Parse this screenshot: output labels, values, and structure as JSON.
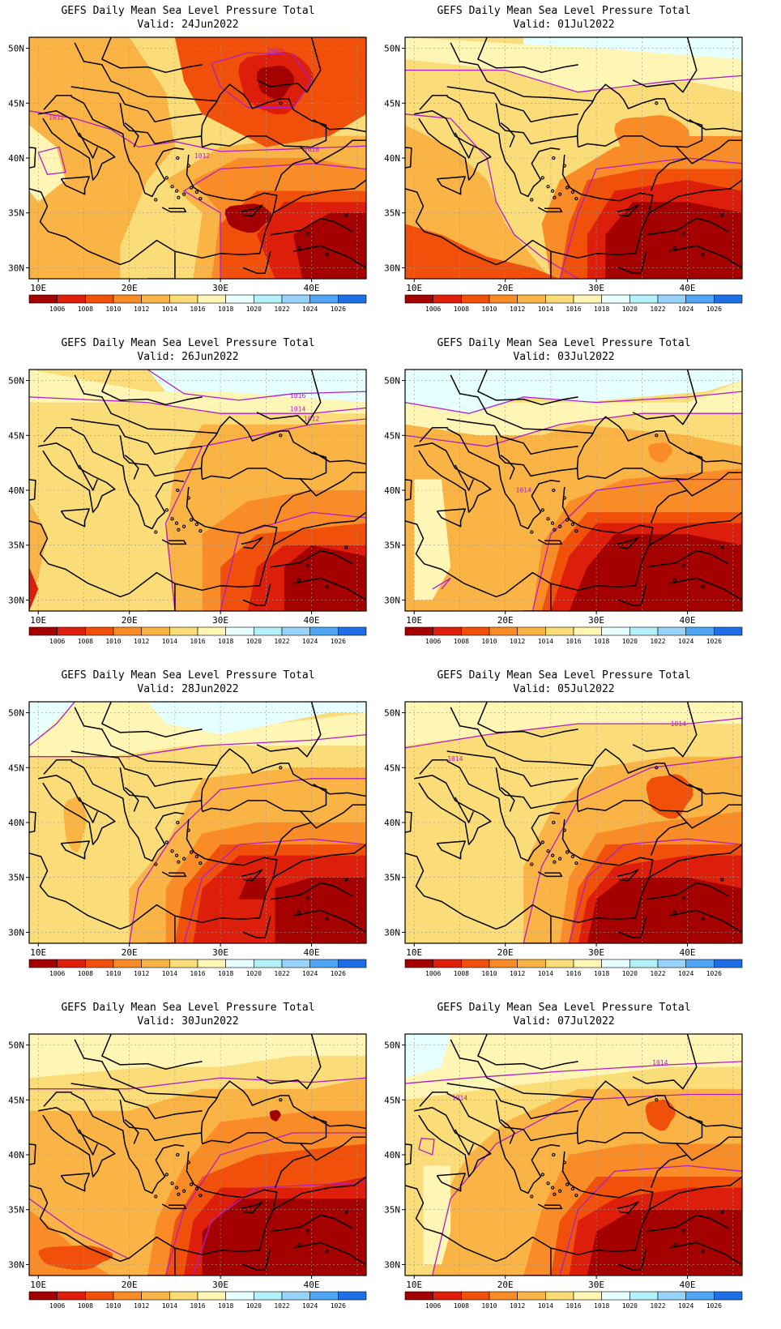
{
  "panels": [
    {
      "title": "GEFS Daily Mean Sea Level Pressure Total",
      "valid": "Valid: 24Jun2022",
      "contour_labels": [
        "1008",
        "1012",
        "1012",
        "1010"
      ],
      "lows": [
        "Black Sea low",
        "Eastern Mediterranean low"
      ]
    },
    {
      "title": "GEFS Daily Mean Sea Level Pressure Total",
      "valid": "Valid: 01Jul2022",
      "contour_labels": [],
      "lows": [
        "Eastern Mediterranean low"
      ]
    },
    {
      "title": "GEFS Daily Mean Sea Level Pressure Total",
      "valid": "Valid: 26Jun2022",
      "contour_labels": [
        "1016",
        "1014",
        "1012"
      ],
      "lows": [
        "Eastern Mediterranean low"
      ]
    },
    {
      "title": "GEFS Daily Mean Sea Level Pressure Total",
      "valid": "Valid: 03Jul2022",
      "contour_labels": [
        "1014"
      ],
      "lows": [
        "Eastern Mediterranean low"
      ]
    },
    {
      "title": "GEFS Daily Mean Sea Level Pressure Total",
      "valid": "Valid: 28Jun2022",
      "contour_labels": [],
      "lows": [
        "Eastern Mediterranean low"
      ]
    },
    {
      "title": "GEFS Daily Mean Sea Level Pressure Total",
      "valid": "Valid: 05Jul2022",
      "contour_labels": [
        "1014",
        "1014"
      ],
      "lows": [
        "Eastern Mediterranean low"
      ]
    },
    {
      "title": "GEFS Daily Mean Sea Level Pressure Total",
      "valid": "Valid: 30Jun2022",
      "contour_labels": [],
      "lows": [
        "Eastern Mediterranean low"
      ]
    },
    {
      "title": "GEFS Daily Mean Sea Level Pressure Total",
      "valid": "Valid: 07Jul2022",
      "contour_labels": [
        "1014",
        "1014"
      ],
      "lows": [
        "Eastern Mediterranean low"
      ]
    }
  ],
  "axes": {
    "lat_labels": [
      "50N",
      "45N",
      "40N",
      "35N",
      "30N"
    ],
    "lon_labels": [
      "10E",
      "20E",
      "30E",
      "40E"
    ]
  },
  "colorbar": {
    "labels": [
      "1006",
      "1008",
      "1010",
      "1012",
      "1014",
      "1016",
      "1018",
      "1020",
      "1022",
      "1024",
      "1026"
    ],
    "colors": [
      "#a50000",
      "#dc1e0a",
      "#f0500a",
      "#fa8c28",
      "#fab446",
      "#fadc78",
      "#fff5b4",
      "#e6ffff",
      "#b4f0fa",
      "#96d2fa",
      "#50a5f5",
      "#1e6ee6"
    ]
  }
}
